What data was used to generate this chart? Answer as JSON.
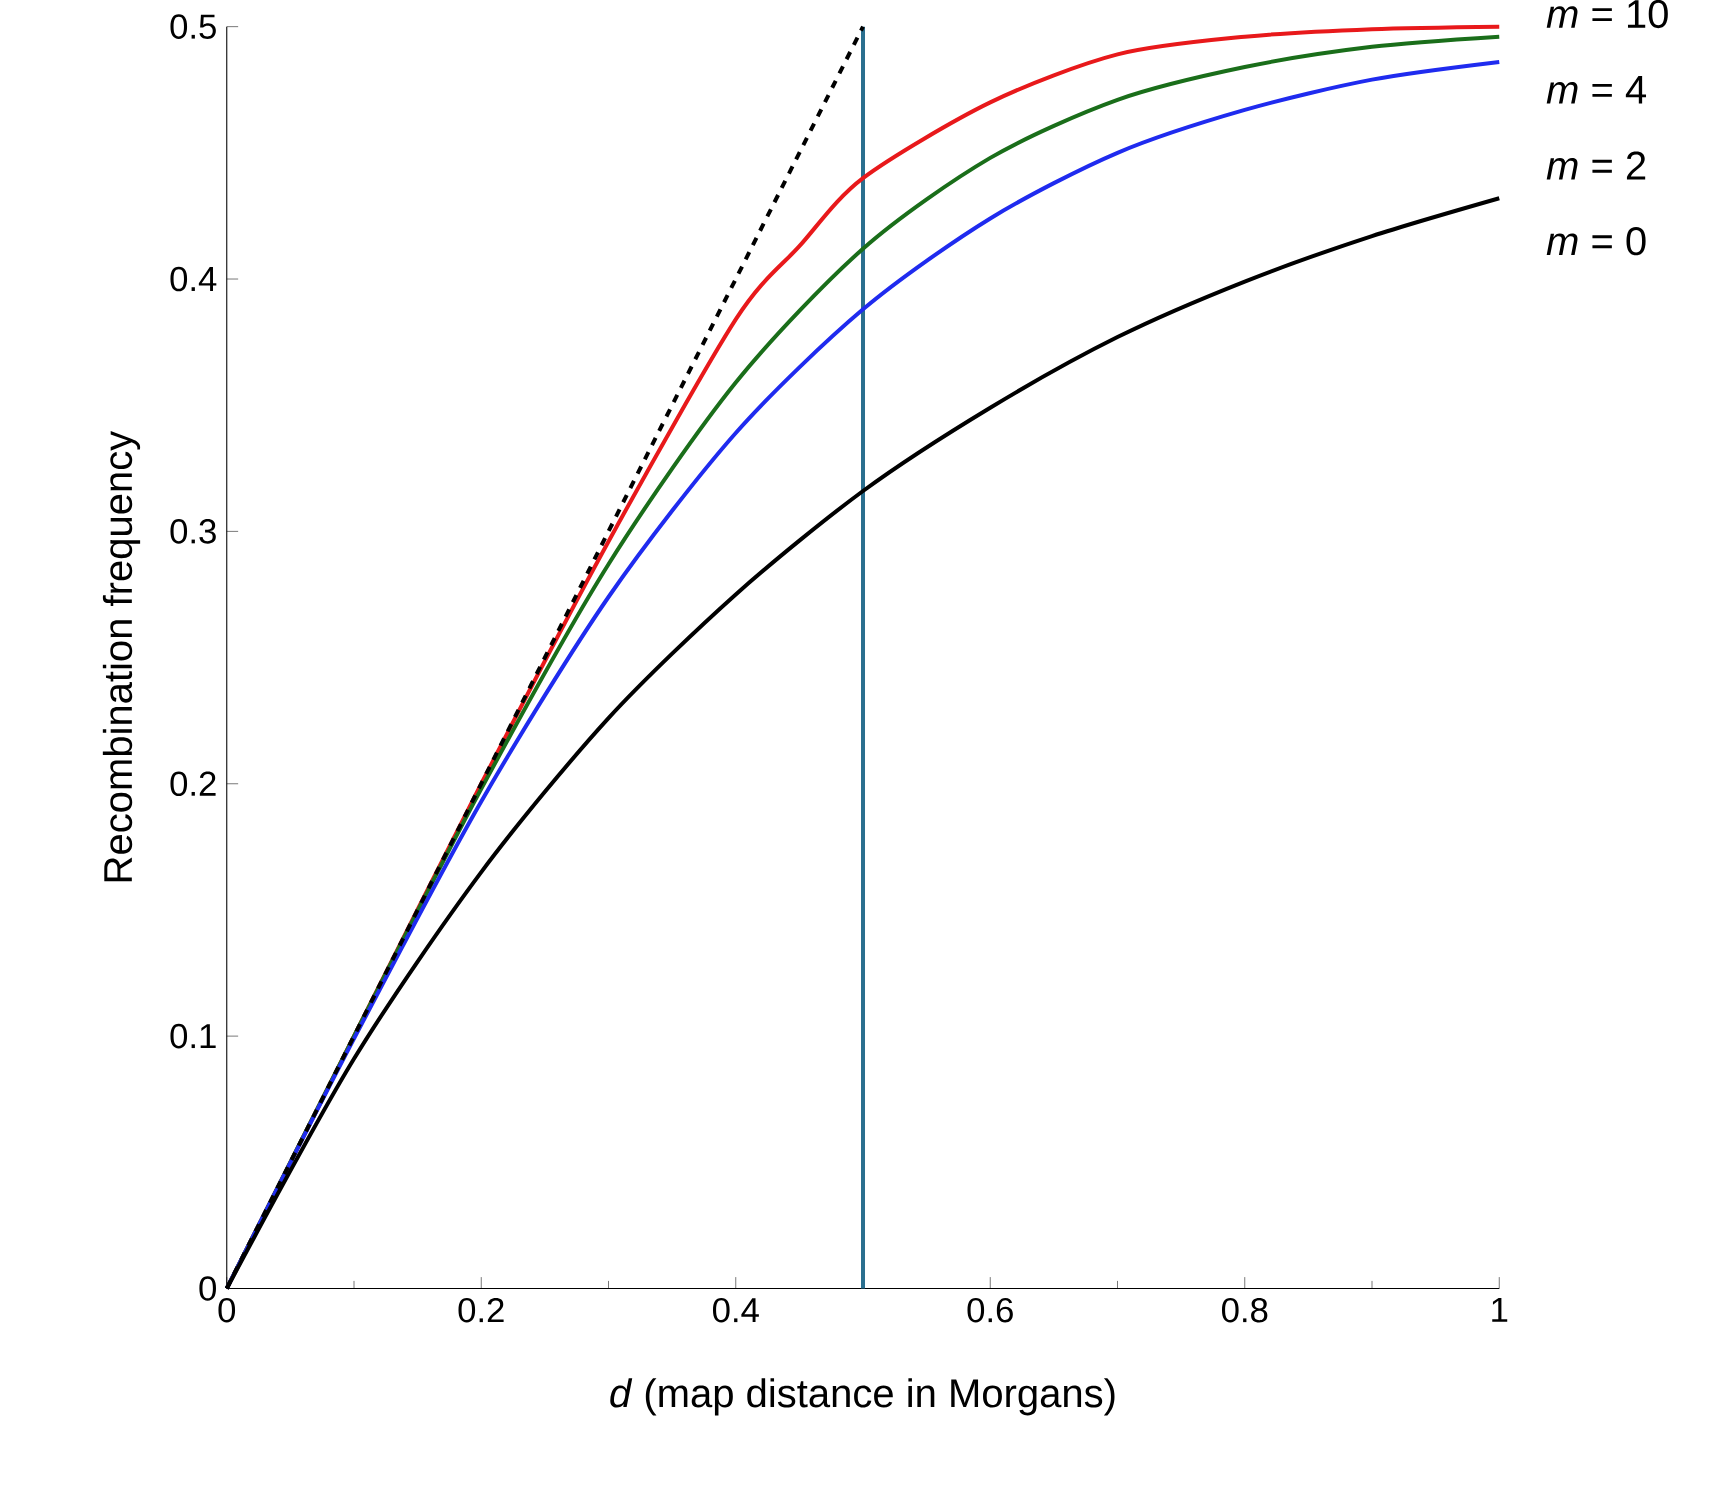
{
  "chart_data": {
    "type": "line",
    "xlabel": "*d* (map distance in Morgans)",
    "ylabel": "Recombination frequency",
    "x": [
      0,
      0.1,
      0.2,
      0.3,
      0.4,
      0.5,
      0.6,
      0.7,
      0.8,
      0.9,
      1
    ],
    "series": [
      {
        "name": "*m* = 10",
        "color": "#e8191b",
        "x": [
          0,
          0.1,
          0.2,
          0.3,
          0.4,
          0.45,
          0.5,
          0.6,
          0.7,
          0.8,
          0.9,
          1
        ],
        "values": [
          0,
          0.1,
          0.2,
          0.296,
          0.384,
          0.413,
          0.44,
          0.47,
          0.489,
          0.496,
          0.499,
          0.5
        ]
      },
      {
        "name": "*m* = 4",
        "color": "#1a6e1a",
        "values": [
          0,
          0.1,
          0.198,
          0.287,
          0.359,
          0.412,
          0.448,
          0.471,
          0.484,
          0.492,
          0.496
        ]
      },
      {
        "name": "*m* = 2",
        "color": "#1f2bef",
        "values": [
          0,
          0.099,
          0.193,
          0.274,
          0.339,
          0.388,
          0.424,
          0.45,
          0.467,
          0.479,
          0.486
        ]
      },
      {
        "name": "*m* = 0",
        "color": "#000000",
        "values": [
          0,
          0.091,
          0.165,
          0.226,
          0.275,
          0.316,
          0.349,
          0.377,
          0.399,
          0.417,
          0.432
        ]
      },
      {
        "color": "#000000",
        "line_style": "dashed",
        "x": [
          0,
          0.5
        ],
        "values": [
          0,
          0.5
        ]
      }
    ],
    "xlim": [
      0,
      1
    ],
    "ylim": [
      0,
      0.5
    ],
    "xticks": [
      0,
      0.2,
      0.4,
      0.6,
      0.8,
      1
    ],
    "yticks": [
      0,
      0.1,
      0.2,
      0.3,
      0.4,
      0.5
    ],
    "ref_lines": [
      {
        "axis": "x",
        "value": 0.5,
        "color": "#2a6f8f"
      }
    ],
    "legend": false,
    "grid": false,
    "marker": "none",
    "line_style": "solid"
  }
}
